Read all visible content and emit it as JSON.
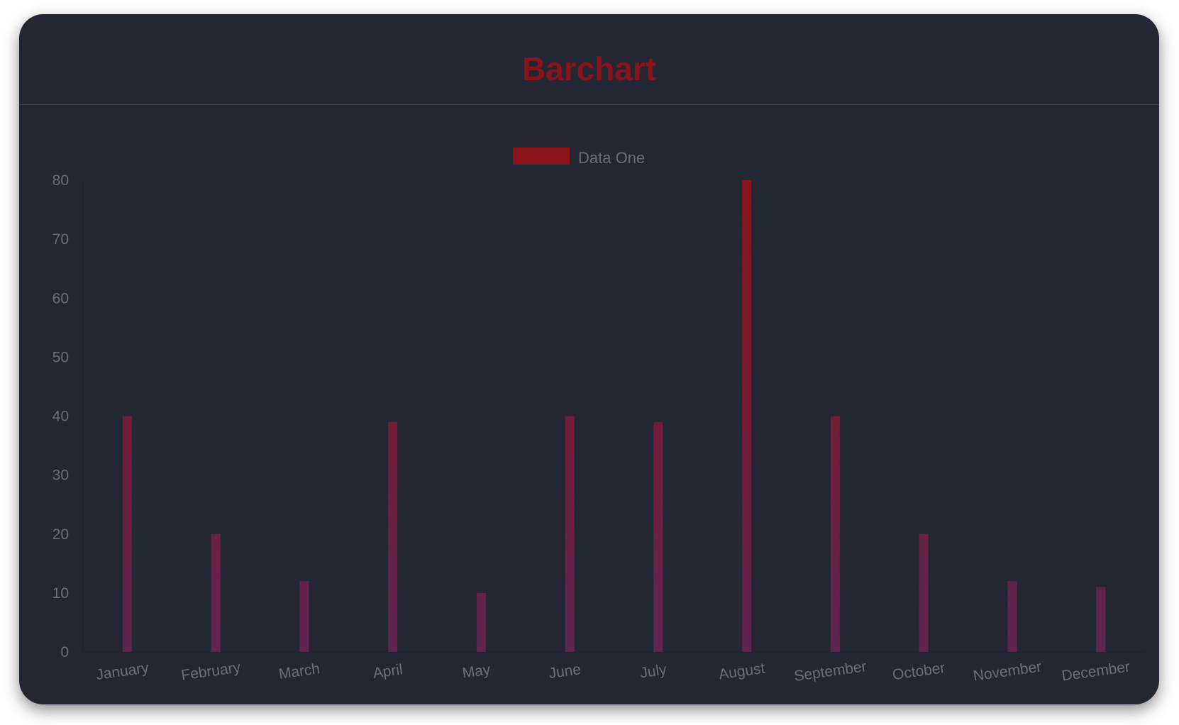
{
  "header": {
    "title": "Barchart"
  },
  "colors": {
    "background": "#222733",
    "title": "#8b141b",
    "bar_top": "#8b141b",
    "bar_bottom": "#5e2552",
    "text": "#6b6f78"
  },
  "chart_data": {
    "type": "bar",
    "title": "Barchart",
    "categories": [
      "January",
      "February",
      "March",
      "April",
      "May",
      "June",
      "July",
      "August",
      "September",
      "October",
      "November",
      "December"
    ],
    "series": [
      {
        "name": "Data One",
        "values": [
          40,
          20,
          12,
          39,
          10,
          40,
          39,
          80,
          40,
          20,
          12,
          11
        ]
      }
    ],
    "ylim": [
      0,
      80
    ],
    "yticks": [
      0,
      10,
      20,
      30,
      40,
      50,
      60,
      70,
      80
    ],
    "grid": false,
    "legend": "top-center",
    "xlabel": "",
    "ylabel": ""
  }
}
